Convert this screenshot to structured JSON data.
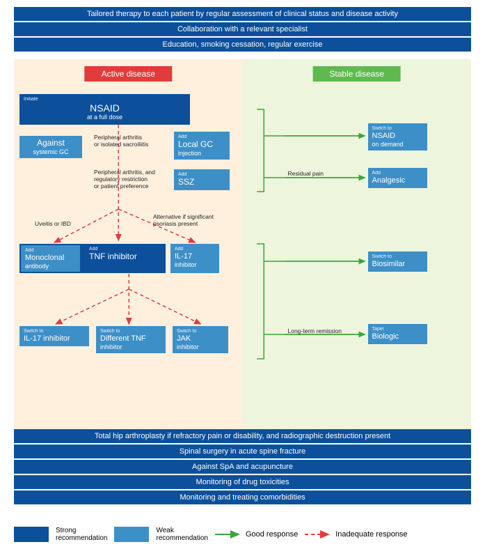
{
  "top_banners": [
    "Tailored therapy to each patient by regular assessment of clinical status and disease activity",
    "Collaboration with a relevant specialist",
    "Education, smoking cessation, regular exercise"
  ],
  "columns": {
    "active": {
      "title": "Active disease",
      "color": "#e23b3b",
      "bg": "#fff0dd"
    },
    "stable": {
      "title": "Stable disease",
      "color": "#5fb94f",
      "bg": "#edf5dd"
    }
  },
  "active_boxes": {
    "nsaid_full": {
      "tag": "Initiate",
      "main": "NSAID",
      "sub": "at a full dose",
      "strength": "strong"
    },
    "against_gc": {
      "main": "Against",
      "sub": "systemic GC",
      "strength": "weak"
    },
    "local_gc": {
      "tag": "Add",
      "main": "Local GC",
      "sub": "injection",
      "strength": "weak"
    },
    "ssz": {
      "tag": "Add",
      "main": "SSZ",
      "strength": "weak"
    },
    "monoclonal": {
      "tag": "Add",
      "main": "Monoclonal",
      "sub": "antibody",
      "strength": "weak"
    },
    "tnf": {
      "tag": "Add",
      "main": "TNF inhibitor",
      "strength": "strong"
    },
    "il17": {
      "tag": "Add",
      "main": "IL-17",
      "sub": "inhibitor",
      "strength": "weak"
    },
    "il17_switch": {
      "tag": "Switch to",
      "main": "IL-17 inhibitor",
      "strength": "weak"
    },
    "diff_tnf": {
      "tag": "Switch to",
      "main": "Different TNF",
      "sub": "inhibitor",
      "strength": "weak"
    },
    "jak": {
      "tag": "Switch to",
      "main": "JAK",
      "sub": "inhibitor",
      "strength": "weak"
    }
  },
  "active_notes": {
    "n1": "Peripheral arthritis\nor isolated sacroiliitis",
    "n2": "Peripheral arthritis, and\nregulatory restriction\nor patient preference",
    "n3": "Uveitis or IBD",
    "n4": "Alternative if significant\npsoriasis present"
  },
  "stable_boxes": {
    "nsaid_demand": {
      "tag": "Switch to",
      "main": "NSAID",
      "sub": "on demand",
      "strength": "weak"
    },
    "analgesic": {
      "tag": "Add",
      "main": "Analgesic",
      "strength": "weak"
    },
    "biosimilar": {
      "tag": "Switch to",
      "main": "Biosimilar",
      "strength": "weak"
    },
    "biologic": {
      "tag": "Taper",
      "main": "Biologic",
      "strength": "weak"
    }
  },
  "stable_notes": {
    "residual": "Residual pain",
    "remission": "Long-term remission"
  },
  "bottom_banners": [
    "Total hip arthroplasty if refractory pain or disability, and radiographic destruction present",
    "Spinal surgery in acute spine fracture",
    "Against SpA and acupuncture",
    "Monitoring of drug toxicities",
    "Monitoring and treating comorbidities"
  ],
  "legend": {
    "strong": "Strong\nrecommendation",
    "weak": "Weak\nrecommendation",
    "good": "Good response",
    "bad": "Inadequate response"
  },
  "colors": {
    "strong": "#0c4f9a",
    "weak": "#3d8fc7",
    "good_arrow": "#3aa63a",
    "bad_arrow": "#e23b3b",
    "text": "#222222"
  }
}
